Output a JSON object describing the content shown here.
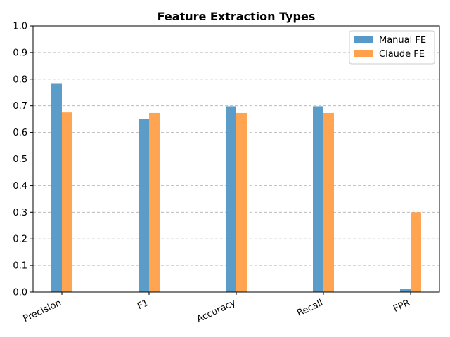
{
  "chart_data": {
    "type": "bar",
    "title": "Feature Extraction Types",
    "xlabel": "",
    "ylabel": "",
    "categories": [
      "Precision",
      "F1",
      "Accuracy",
      "Recall",
      "FPR"
    ],
    "series": [
      {
        "name": "Manual FE",
        "values": [
          0.785,
          0.65,
          0.698,
          0.698,
          0.012
        ],
        "color": "#5799c7"
      },
      {
        "name": "Claude FE",
        "values": [
          0.675,
          0.673,
          0.673,
          0.673,
          0.3
        ],
        "color": "#ffa14a"
      }
    ],
    "ylim": [
      0,
      1.0
    ],
    "yticks": [
      "0.0",
      "0.1",
      "0.2",
      "0.3",
      "0.4",
      "0.5",
      "0.6",
      "0.7",
      "0.8",
      "0.9",
      "1.0"
    ],
    "grid": "y-dashed",
    "legend_position": "top-right"
  }
}
